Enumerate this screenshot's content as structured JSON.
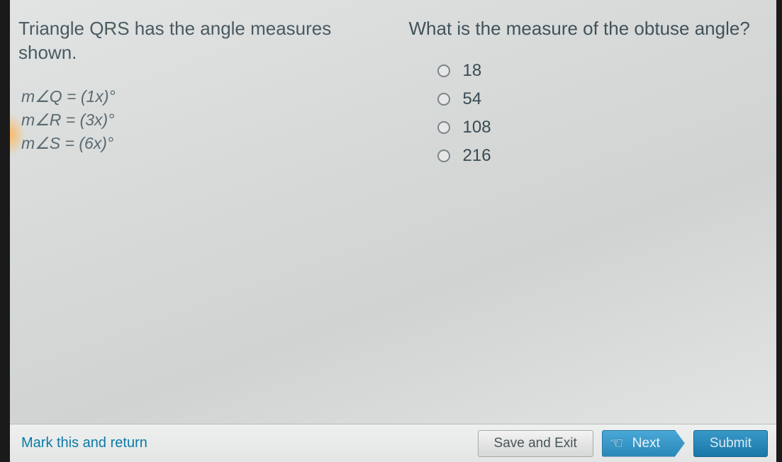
{
  "left": {
    "prompt": "Triangle QRS has the angle measures shown.",
    "equations": {
      "q": "m∠Q = (1x)°",
      "r": "m∠R = (3x)°",
      "s": "m∠S = (6x)°"
    }
  },
  "right": {
    "question": "What is the measure of the obtuse angle?",
    "options": [
      "18",
      "54",
      "108",
      "216"
    ]
  },
  "footer": {
    "mark": "Mark this and return",
    "save": "Save and Exit",
    "next": "Next",
    "submit": "Submit"
  },
  "colors": {
    "content_bg_start": "#e2e4e3",
    "content_bg_end": "#d0d3d2",
    "text_main": "#3c4a52",
    "text_prompt": "#4a5a62",
    "link": "#0a7aa8",
    "btn_next_start": "#4aa8d8",
    "btn_next_end": "#2a88b8",
    "btn_submit_start": "#3898c8",
    "btn_submit_end": "#1a78a8",
    "radio_border": "#7a868c"
  },
  "typography": {
    "prompt_fontsize": 26,
    "equation_fontsize": 23,
    "option_fontsize": 24,
    "footer_fontsize": 20
  }
}
